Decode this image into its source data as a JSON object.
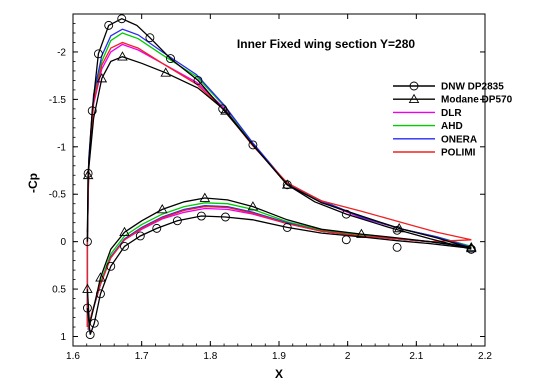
{
  "chart_data": {
    "type": "line",
    "title": "Inner Fixed wing section Y=280",
    "xlabel": "X",
    "ylabel": "-Cp",
    "xlim": [
      1.6,
      2.2
    ],
    "ylim": [
      1.1,
      -2.4
    ],
    "y_inverted": true,
    "grid": false,
    "legend_position": "top-right",
    "xticks": [
      1.6,
      1.7,
      1.8,
      1.9,
      2.0,
      2.1,
      2.2
    ],
    "xtick_labels": [
      "1.6",
      "1.7",
      "1.8",
      "1.9",
      "2",
      "2.1",
      "2.2"
    ],
    "yticks": [
      -2,
      -1.5,
      -1,
      -0.5,
      0,
      0.5,
      1
    ],
    "ytick_labels": [
      "-2",
      "-1.5",
      "-1",
      "-0.5",
      "0",
      "0.5",
      "1"
    ],
    "series": [
      {
        "name": "DNW DP2835",
        "color": "#000000",
        "marker": "circle",
        "upper": [
          [
            1.621,
            0.0
          ],
          [
            1.622,
            -0.72
          ],
          [
            1.628,
            -1.38
          ],
          [
            1.637,
            -1.98
          ],
          [
            1.652,
            -2.28
          ],
          [
            1.671,
            -2.35
          ],
          [
            1.693,
            -2.28
          ],
          [
            1.712,
            -2.15
          ],
          [
            1.742,
            -1.93
          ],
          [
            1.782,
            -1.7
          ],
          [
            1.818,
            -1.4
          ],
          [
            1.862,
            -1.02
          ],
          [
            1.912,
            -0.6
          ],
          [
            1.952,
            -0.42
          ],
          [
            1.998,
            -0.29
          ],
          [
            2.06,
            -0.15
          ],
          [
            2.12,
            -0.03
          ],
          [
            2.18,
            0.08
          ]
        ],
        "lower": [
          [
            1.621,
            0.7
          ],
          [
            1.625,
            0.98
          ],
          [
            1.631,
            0.86
          ],
          [
            1.64,
            0.55
          ],
          [
            1.655,
            0.26
          ],
          [
            1.675,
            0.05
          ],
          [
            1.698,
            -0.06
          ],
          [
            1.722,
            -0.14
          ],
          [
            1.752,
            -0.22
          ],
          [
            1.787,
            -0.27
          ],
          [
            1.822,
            -0.26
          ],
          [
            1.862,
            -0.23
          ],
          [
            1.912,
            -0.15
          ],
          [
            1.962,
            -0.09
          ],
          [
            2.02,
            -0.05
          ],
          [
            2.072,
            -0.01
          ],
          [
            2.12,
            0.02
          ],
          [
            2.18,
            0.07
          ]
        ],
        "upper_markers": [
          [
            1.622,
            -0.72
          ],
          [
            1.628,
            -1.38
          ],
          [
            1.637,
            -1.98
          ],
          [
            1.652,
            -2.28
          ],
          [
            1.671,
            -2.35
          ],
          [
            1.712,
            -2.15
          ],
          [
            1.742,
            -1.93
          ],
          [
            1.782,
            -1.7
          ],
          [
            1.818,
            -1.4
          ],
          [
            1.862,
            -1.02
          ],
          [
            1.912,
            -0.6
          ],
          [
            1.998,
            -0.29
          ],
          [
            2.072,
            -0.12
          ],
          [
            2.18,
            0.08
          ]
        ],
        "lower_markers": [
          [
            1.621,
            0.0
          ],
          [
            1.621,
            0.7
          ],
          [
            1.625,
            0.98
          ],
          [
            1.631,
            0.86
          ],
          [
            1.64,
            0.55
          ],
          [
            1.655,
            0.26
          ],
          [
            1.675,
            0.05
          ],
          [
            1.698,
            -0.06
          ],
          [
            1.722,
            -0.14
          ],
          [
            1.752,
            -0.22
          ],
          [
            1.787,
            -0.27
          ],
          [
            1.822,
            -0.26
          ],
          [
            1.912,
            -0.15
          ],
          [
            1.998,
            -0.02
          ],
          [
            2.072,
            0.06
          ],
          [
            2.18,
            0.08
          ]
        ]
      },
      {
        "name": "Modane DP570",
        "color": "#000000",
        "marker": "triangle",
        "upper": [
          [
            1.621,
            -0.1
          ],
          [
            1.622,
            -0.7
          ],
          [
            1.63,
            -1.3
          ],
          [
            1.642,
            -1.72
          ],
          [
            1.655,
            -1.9
          ],
          [
            1.672,
            -1.95
          ],
          [
            1.7,
            -1.88
          ],
          [
            1.735,
            -1.78
          ],
          [
            1.782,
            -1.62
          ],
          [
            1.822,
            -1.38
          ],
          [
            1.862,
            -1.02
          ],
          [
            1.912,
            -0.6
          ],
          [
            1.962,
            -0.41
          ],
          [
            2.02,
            -0.27
          ],
          [
            2.075,
            -0.14
          ],
          [
            2.13,
            -0.04
          ],
          [
            2.18,
            0.07
          ]
        ],
        "lower": [
          [
            1.621,
            0.5
          ],
          [
            1.624,
            0.88
          ],
          [
            1.63,
            0.7
          ],
          [
            1.64,
            0.38
          ],
          [
            1.655,
            0.08
          ],
          [
            1.675,
            -0.1
          ],
          [
            1.7,
            -0.22
          ],
          [
            1.73,
            -0.34
          ],
          [
            1.762,
            -0.42
          ],
          [
            1.792,
            -0.46
          ],
          [
            1.825,
            -0.44
          ],
          [
            1.862,
            -0.37
          ],
          [
            1.912,
            -0.23
          ],
          [
            1.962,
            -0.13
          ],
          [
            2.02,
            -0.08
          ],
          [
            2.072,
            -0.04
          ],
          [
            2.12,
            0.0
          ],
          [
            2.18,
            0.06
          ]
        ],
        "upper_markers": [
          [
            1.622,
            -0.7
          ],
          [
            1.642,
            -1.72
          ],
          [
            1.672,
            -1.95
          ],
          [
            1.735,
            -1.78
          ],
          [
            1.822,
            -1.38
          ],
          [
            1.912,
            -0.6
          ],
          [
            2.075,
            -0.14
          ],
          [
            2.18,
            0.07
          ]
        ],
        "lower_markers": [
          [
            1.621,
            0.5
          ],
          [
            1.64,
            0.38
          ],
          [
            1.675,
            -0.1
          ],
          [
            1.73,
            -0.34
          ],
          [
            1.792,
            -0.46
          ],
          [
            1.862,
            -0.37
          ],
          [
            2.02,
            -0.08
          ],
          [
            2.18,
            0.06
          ]
        ]
      },
      {
        "name": "DLR",
        "color": "#ee00ee",
        "upper": [
          [
            1.621,
            0.9
          ],
          [
            1.621,
            0.0
          ],
          [
            1.623,
            -0.8
          ],
          [
            1.63,
            -1.45
          ],
          [
            1.642,
            -1.82
          ],
          [
            1.655,
            -2.0
          ],
          [
            1.672,
            -2.08
          ],
          [
            1.695,
            -2.02
          ],
          [
            1.73,
            -1.88
          ],
          [
            1.78,
            -1.68
          ],
          [
            1.82,
            -1.41
          ],
          [
            1.862,
            -1.02
          ],
          [
            1.912,
            -0.6
          ],
          [
            1.962,
            -0.42
          ],
          [
            2.02,
            -0.25
          ],
          [
            2.08,
            -0.13
          ],
          [
            2.13,
            -0.05
          ],
          [
            2.18,
            0.05
          ]
        ],
        "lower": [
          [
            1.622,
            0.92
          ],
          [
            1.628,
            0.74
          ],
          [
            1.64,
            0.45
          ],
          [
            1.655,
            0.17
          ],
          [
            1.675,
            -0.02
          ],
          [
            1.7,
            -0.13
          ],
          [
            1.73,
            -0.24
          ],
          [
            1.762,
            -0.31
          ],
          [
            1.792,
            -0.35
          ],
          [
            1.825,
            -0.34
          ],
          [
            1.862,
            -0.29
          ],
          [
            1.912,
            -0.19
          ],
          [
            1.962,
            -0.11
          ],
          [
            2.02,
            -0.06
          ],
          [
            2.072,
            -0.03
          ],
          [
            2.12,
            0.0
          ],
          [
            2.18,
            0.05
          ]
        ]
      },
      {
        "name": "AHD",
        "color": "#00cc00",
        "upper": [
          [
            1.621,
            0.9
          ],
          [
            1.621,
            0.0
          ],
          [
            1.623,
            -0.85
          ],
          [
            1.63,
            -1.5
          ],
          [
            1.642,
            -1.9
          ],
          [
            1.655,
            -2.12
          ],
          [
            1.672,
            -2.2
          ],
          [
            1.695,
            -2.14
          ],
          [
            1.73,
            -1.97
          ],
          [
            1.78,
            -1.74
          ],
          [
            1.82,
            -1.43
          ],
          [
            1.862,
            -1.03
          ],
          [
            1.912,
            -0.6
          ],
          [
            1.962,
            -0.43
          ],
          [
            2.02,
            -0.26
          ],
          [
            2.08,
            -0.13
          ],
          [
            2.13,
            -0.05
          ],
          [
            2.18,
            0.05
          ]
        ],
        "lower": [
          [
            1.622,
            0.92
          ],
          [
            1.628,
            0.74
          ],
          [
            1.64,
            0.43
          ],
          [
            1.655,
            0.13
          ],
          [
            1.675,
            -0.06
          ],
          [
            1.7,
            -0.18
          ],
          [
            1.73,
            -0.29
          ],
          [
            1.762,
            -0.37
          ],
          [
            1.792,
            -0.41
          ],
          [
            1.825,
            -0.4
          ],
          [
            1.862,
            -0.34
          ],
          [
            1.912,
            -0.21
          ],
          [
            1.962,
            -0.12
          ],
          [
            2.02,
            -0.07
          ],
          [
            2.072,
            -0.03
          ],
          [
            2.12,
            0.0
          ],
          [
            2.18,
            0.05
          ]
        ]
      },
      {
        "name": "ONERA",
        "color": "#2a2aee",
        "upper": [
          [
            1.621,
            0.9
          ],
          [
            1.621,
            0.0
          ],
          [
            1.623,
            -0.88
          ],
          [
            1.63,
            -1.55
          ],
          [
            1.642,
            -1.96
          ],
          [
            1.655,
            -2.17
          ],
          [
            1.672,
            -2.24
          ],
          [
            1.695,
            -2.18
          ],
          [
            1.73,
            -2.0
          ],
          [
            1.78,
            -1.76
          ],
          [
            1.82,
            -1.44
          ],
          [
            1.862,
            -1.04
          ],
          [
            1.912,
            -0.61
          ],
          [
            1.962,
            -0.43
          ],
          [
            2.02,
            -0.26
          ],
          [
            2.08,
            -0.13
          ],
          [
            2.13,
            -0.05
          ],
          [
            2.18,
            0.06
          ]
        ],
        "lower": [
          [
            1.622,
            0.93
          ],
          [
            1.628,
            0.75
          ],
          [
            1.64,
            0.45
          ],
          [
            1.655,
            0.16
          ],
          [
            1.675,
            -0.03
          ],
          [
            1.7,
            -0.15
          ],
          [
            1.73,
            -0.26
          ],
          [
            1.762,
            -0.34
          ],
          [
            1.792,
            -0.38
          ],
          [
            1.825,
            -0.37
          ],
          [
            1.862,
            -0.31
          ],
          [
            1.912,
            -0.2
          ],
          [
            1.962,
            -0.11
          ],
          [
            2.02,
            -0.06
          ],
          [
            2.072,
            -0.03
          ],
          [
            2.12,
            0.0
          ],
          [
            2.18,
            0.06
          ]
        ]
      },
      {
        "name": "POLIMI",
        "color": "#ee2222",
        "upper": [
          [
            1.621,
            0.9
          ],
          [
            1.621,
            0.0
          ],
          [
            1.623,
            -0.82
          ],
          [
            1.63,
            -1.47
          ],
          [
            1.642,
            -1.86
          ],
          [
            1.655,
            -2.04
          ],
          [
            1.672,
            -2.1
          ],
          [
            1.695,
            -2.04
          ],
          [
            1.73,
            -1.88
          ],
          [
            1.78,
            -1.66
          ],
          [
            1.82,
            -1.39
          ],
          [
            1.862,
            -1.01
          ],
          [
            1.912,
            -0.62
          ],
          [
            1.962,
            -0.43
          ],
          [
            2.02,
            -0.32
          ],
          [
            2.08,
            -0.2
          ],
          [
            2.13,
            -0.1
          ],
          [
            2.18,
            -0.02
          ]
        ],
        "lower": [
          [
            1.622,
            0.92
          ],
          [
            1.628,
            0.74
          ],
          [
            1.64,
            0.45
          ],
          [
            1.655,
            0.17
          ],
          [
            1.675,
            -0.02
          ],
          [
            1.7,
            -0.14
          ],
          [
            1.73,
            -0.25
          ],
          [
            1.762,
            -0.33
          ],
          [
            1.792,
            -0.37
          ],
          [
            1.825,
            -0.36
          ],
          [
            1.862,
            -0.3
          ],
          [
            1.912,
            -0.19
          ],
          [
            1.962,
            -0.11
          ],
          [
            2.02,
            -0.06
          ],
          [
            2.072,
            -0.03
          ],
          [
            2.12,
            0.0
          ],
          [
            2.18,
            -0.02
          ]
        ]
      }
    ]
  }
}
